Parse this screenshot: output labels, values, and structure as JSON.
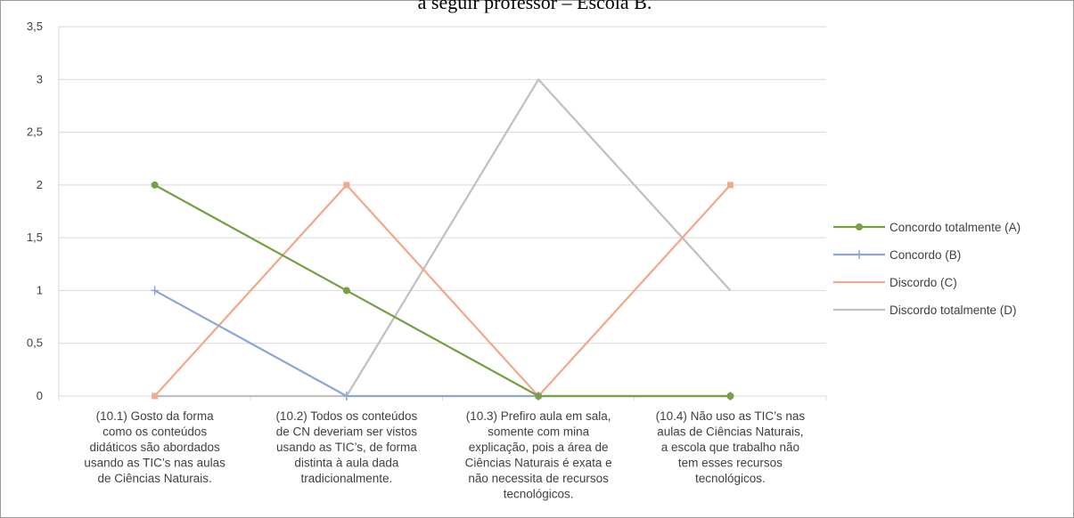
{
  "chart_data": {
    "type": "line",
    "title": "a seguir professor – Escola B.",
    "categories": [
      [
        "(10.1) Gosto da forma",
        "como os conteúdos",
        "didáticos são abordados",
        "usando as TIC’s nas aulas",
        "de Ciências Naturais."
      ],
      [
        "(10.2) Todos os conteúdos",
        "de CN deveriam ser vistos",
        "usando as TIC’s, de forma",
        "distinta à aula dada",
        "tradicionalmente."
      ],
      [
        "(10.3) Prefiro aula em sala,",
        "somente com mina",
        "explicação, pois a área de",
        "Ciências Naturais é exata e",
        "não necessita de recursos",
        "tecnológicos."
      ],
      [
        "(10.4) Não uso as TIC’s nas",
        "aulas de Ciências Naturais,",
        "a escola que trabalho não",
        "tem esses recursos",
        "tecnológicos."
      ]
    ],
    "y_ticks": [
      "0",
      "0,5",
      "1",
      "1,5",
      "2",
      "2,5",
      "3",
      "3,5"
    ],
    "ylim": [
      0,
      3.5
    ],
    "grid": true,
    "legend_position": "right",
    "series": [
      {
        "name": "Concordo totalmente (A)",
        "values": [
          2,
          1,
          0,
          0
        ],
        "color": "#77a043",
        "marker": "circle"
      },
      {
        "name": "Concordo (B)",
        "values": [
          1,
          0,
          0,
          0
        ],
        "color": "#8ea5d8",
        "marker": "plus"
      },
      {
        "name": "Discordo (C)",
        "values": [
          0,
          2,
          0,
          2
        ],
        "color": "#f2a98a",
        "marker": "square"
      },
      {
        "name": "Discordo totalmente (D)",
        "values": [
          0,
          0,
          3,
          1
        ],
        "color": "#c0c0c0",
        "marker": "none"
      }
    ]
  }
}
